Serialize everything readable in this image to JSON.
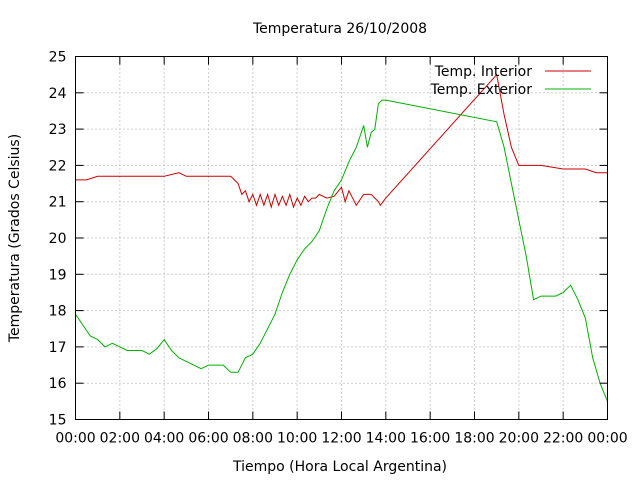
{
  "chart_data": {
    "type": "line",
    "title": "Temperatura 26/10/2008",
    "xlabel": "Tiempo (Hora Local Argentina)",
    "ylabel": "Temperatura (Grados Celsius)",
    "xlim": [
      "00:00",
      "24:00"
    ],
    "ylim": [
      15,
      25
    ],
    "x_ticks": [
      "00:00",
      "02:00",
      "04:00",
      "06:00",
      "08:00",
      "10:00",
      "12:00",
      "14:00",
      "16:00",
      "18:00",
      "20:00",
      "22:00",
      "00:00"
    ],
    "y_ticks": [
      "15",
      "16",
      "17",
      "18",
      "19",
      "20",
      "21",
      "22",
      "23",
      "24",
      "25"
    ],
    "grid": true,
    "legend_position": "top-right",
    "series": [
      {
        "name": "Temp. Interior",
        "color": "#cc0000",
        "x": [
          "00:00",
          "00:30",
          "01:00",
          "04:00",
          "04:20",
          "04:40",
          "05:00",
          "06:00",
          "07:00",
          "07:20",
          "07:30",
          "07:40",
          "07:50",
          "08:00",
          "08:10",
          "08:20",
          "08:30",
          "08:40",
          "08:50",
          "09:00",
          "09:10",
          "09:20",
          "09:30",
          "09:40",
          "09:50",
          "10:00",
          "10:10",
          "10:20",
          "10:30",
          "10:40",
          "10:50",
          "11:00",
          "11:20",
          "11:40",
          "12:00",
          "12:10",
          "12:20",
          "12:40",
          "13:00",
          "13:20",
          "13:40",
          "13:45",
          "14:00",
          "19:00",
          "19:20",
          "19:40",
          "20:00",
          "20:30",
          "21:00",
          "22:00",
          "22:40",
          "23:00",
          "23:30",
          "24:00"
        ],
        "y": [
          21.6,
          21.6,
          21.7,
          21.7,
          21.75,
          21.8,
          21.7,
          21.7,
          21.7,
          21.5,
          21.2,
          21.3,
          21.0,
          21.2,
          20.9,
          21.2,
          20.9,
          21.2,
          20.85,
          21.2,
          20.9,
          21.15,
          20.9,
          21.2,
          20.85,
          21.1,
          20.9,
          21.15,
          21.0,
          21.1,
          21.1,
          21.2,
          21.1,
          21.15,
          21.4,
          21.0,
          21.3,
          20.9,
          21.2,
          21.2,
          21.0,
          20.9,
          21.1,
          24.5,
          23.4,
          22.5,
          22.0,
          22.0,
          22.0,
          21.9,
          21.9,
          21.9,
          21.8,
          21.8
        ]
      },
      {
        "name": "Temp. Exterior",
        "color": "#00b000",
        "x": [
          "00:00",
          "00:20",
          "00:40",
          "01:00",
          "01:20",
          "01:40",
          "02:00",
          "02:20",
          "02:40",
          "03:00",
          "03:20",
          "03:40",
          "04:00",
          "04:20",
          "04:40",
          "05:00",
          "05:20",
          "05:40",
          "06:00",
          "06:20",
          "06:40",
          "07:00",
          "07:20",
          "07:40",
          "08:00",
          "08:20",
          "08:40",
          "09:00",
          "09:20",
          "09:40",
          "10:00",
          "10:20",
          "10:40",
          "11:00",
          "11:20",
          "11:40",
          "12:00",
          "12:20",
          "12:40",
          "12:50",
          "13:00",
          "13:10",
          "13:20",
          "13:30",
          "13:40",
          "13:50",
          "14:00",
          "19:00",
          "19:20",
          "19:40",
          "20:00",
          "20:20",
          "20:40",
          "21:00",
          "21:20",
          "21:40",
          "22:00",
          "22:20",
          "22:40",
          "23:00",
          "23:20",
          "23:40",
          "24:00"
        ],
        "y": [
          17.9,
          17.6,
          17.3,
          17.2,
          17.0,
          17.1,
          17.0,
          16.9,
          16.9,
          16.9,
          16.8,
          16.95,
          17.2,
          16.9,
          16.7,
          16.6,
          16.5,
          16.4,
          16.5,
          16.5,
          16.5,
          16.3,
          16.3,
          16.7,
          16.8,
          17.1,
          17.5,
          17.9,
          18.5,
          19.0,
          19.4,
          19.7,
          19.9,
          20.2,
          20.8,
          21.3,
          21.6,
          22.1,
          22.5,
          22.8,
          23.1,
          22.5,
          22.9,
          23.0,
          23.7,
          23.8,
          23.8,
          23.2,
          22.5,
          21.5,
          20.5,
          19.5,
          18.3,
          18.4,
          18.4,
          18.4,
          18.5,
          18.7,
          18.3,
          17.8,
          16.7,
          16.0,
          15.5
        ]
      }
    ]
  }
}
